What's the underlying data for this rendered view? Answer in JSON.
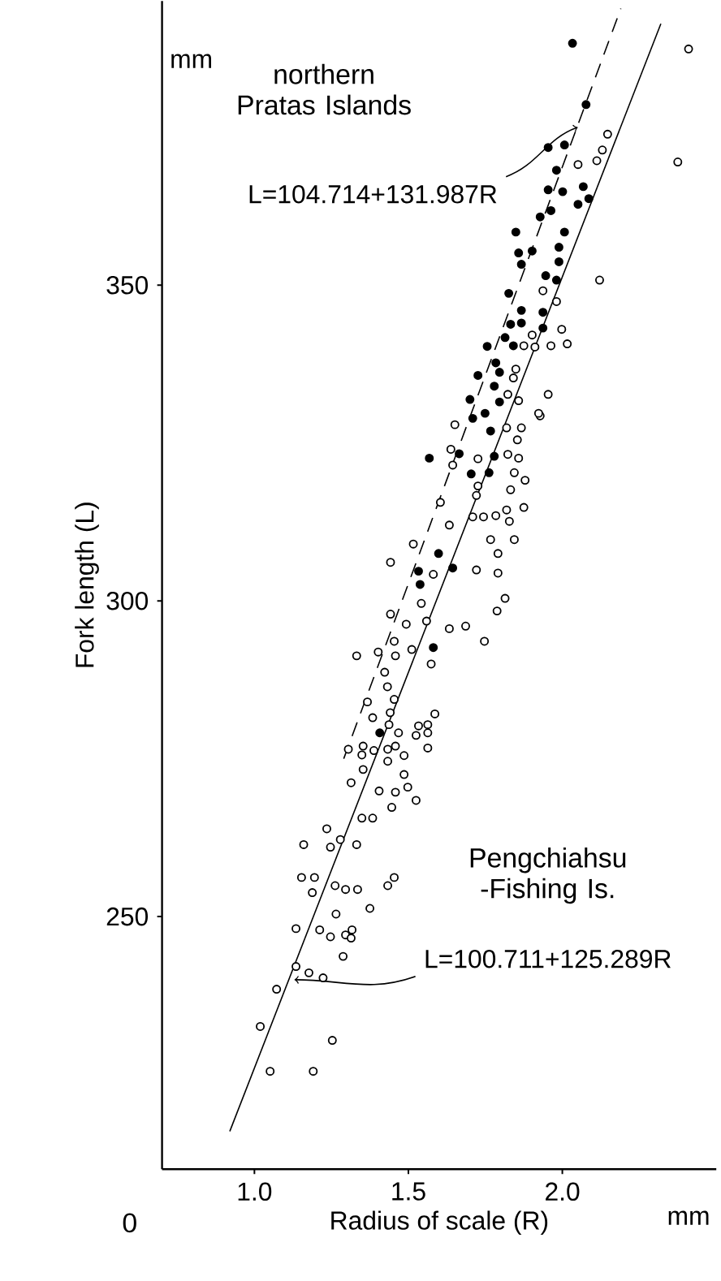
{
  "chart_data": {
    "type": "scatter",
    "xlabel": "Radius of scale (R)",
    "ylabel": "Fork length (L)",
    "marker": "circle",
    "xlim": [
      0.7,
      2.5
    ],
    "ylim": [
      210,
      395
    ],
    "xticks": [
      {
        "value": 1,
        "label": "1.0"
      },
      {
        "value": 1.5,
        "label": "1.5"
      },
      {
        "value": 2,
        "label": "2.0"
      }
    ],
    "yticks": [
      250,
      300,
      350
    ],
    "annotations": [
      "northern Pratas Islands",
      {
        "text": "L=104.714+131.987R",
        "x": 2.05,
        "y": 375
      },
      "Pengchiahsu -Fishing Is.",
      {
        "text": "L=100.711+125.289R",
        "x": 1.13,
        "y": 240
      },
      "mm",
      "mm",
      "0"
    ],
    "series": [
      {
        "color": "#000000",
        "x": [
          2.033,
          2.077,
          1.954,
          2.007,
          1.981,
          2.068,
          1.954,
          2.001,
          2.086,
          2.051,
          1.963,
          1.928,
          1.849,
          2.007,
          1.989,
          1.858,
          1.902,
          1.989,
          1.867,
          1.946,
          1.981,
          1.826,
          1.867,
          1.937,
          1.832,
          1.867,
          1.937,
          1.814,
          1.756,
          1.841,
          1.784,
          1.726,
          1.796,
          1.7,
          1.779,
          1.796,
          1.749,
          1.709,
          1.767,
          1.665,
          1.568,
          1.779,
          1.704,
          1.762,
          1.598,
          1.644,
          1.533,
          1.538,
          1.581,
          1.407
        ],
        "values": [
          388.3,
          378.6,
          371.8,
          372.2,
          368.2,
          365.6,
          365.1,
          364.8,
          363.7,
          362.8,
          361.8,
          360.8,
          358.4,
          358.4,
          356.0,
          355.1,
          355.4,
          353.7,
          353.3,
          351.5,
          350.8,
          348.7,
          346.0,
          345.7,
          343.8,
          344.0,
          343.2,
          341.7,
          340.3,
          340.4,
          337.7,
          335.7,
          336.2,
          331.9,
          334.0,
          331.5,
          329.7,
          328.9,
          326.9,
          323.3,
          322.6,
          322.9,
          320.1,
          320.3,
          307.5,
          305.2,
          304.7,
          302.6,
          292.6,
          279.1
        ]
      },
      {
        "color": "#000000",
        "x": [
          2.41,
          2.147,
          2.13,
          2.112,
          2.051,
          2.375,
          2.121,
          1.937,
          1.981,
          1.998,
          1.902,
          1.875,
          1.911,
          1.963,
          2.016,
          1.849,
          1.841,
          1.823,
          1.858,
          1.954,
          1.928,
          1.651,
          1.819,
          1.867,
          1.854,
          1.638,
          1.644,
          1.726,
          1.823,
          1.858,
          1.923,
          1.844,
          1.879,
          1.726,
          1.721,
          1.832,
          1.604,
          1.875,
          1.709,
          1.744,
          1.784,
          1.819,
          1.828,
          1.633,
          1.767,
          1.844,
          1.791,
          1.516,
          1.442,
          1.581,
          1.721,
          1.791,
          1.814,
          1.788,
          1.542,
          1.442,
          1.493,
          1.559,
          1.633,
          1.686,
          1.747,
          1.454,
          1.332,
          1.402,
          1.458,
          1.511,
          1.574,
          1.423,
          1.432,
          1.454,
          1.367,
          1.384,
          1.441,
          1.533,
          1.586,
          1.563,
          1.437,
          1.468,
          1.525,
          1.563,
          1.305,
          1.353,
          1.388,
          1.433,
          1.458,
          1.486,
          1.349,
          1.433,
          1.563,
          1.353,
          1.314,
          1.486,
          1.405,
          1.458,
          1.498,
          1.446,
          1.525,
          1.349,
          1.384,
          1.235,
          1.16,
          1.247,
          1.279,
          1.332,
          1.153,
          1.195,
          1.188,
          1.262,
          1.296,
          1.335,
          1.433,
          1.454,
          1.375,
          1.265,
          1.135,
          1.212,
          1.247,
          1.296,
          1.317,
          1.314,
          1.288,
          1.135,
          1.177,
          1.223,
          1.072,
          1.019,
          1.253,
          1.051,
          1.191
        ],
        "values": [
          387.4,
          373.9,
          371.4,
          369.7,
          369.1,
          369.5,
          350.8,
          349.1,
          347.4,
          343.0,
          342.1,
          340.4,
          340.2,
          340.4,
          340.7,
          336.7,
          335.3,
          332.7,
          331.7,
          332.7,
          329.3,
          327.9,
          327.4,
          327.4,
          325.5,
          324.0,
          321.5,
          322.5,
          323.2,
          322.6,
          329.7,
          320.3,
          319.1,
          318.2,
          316.7,
          317.6,
          315.6,
          314.8,
          313.3,
          313.3,
          313.5,
          314.4,
          312.6,
          312.0,
          309.7,
          309.7,
          307.5,
          309.0,
          306.1,
          304.2,
          304.9,
          304.4,
          300.4,
          298.4,
          299.6,
          297.9,
          296.3,
          296.8,
          295.6,
          296.0,
          293.6,
          293.6,
          291.3,
          291.9,
          291.3,
          292.3,
          290.0,
          288.7,
          286.4,
          284.4,
          284.0,
          281.5,
          282.3,
          280.2,
          282.1,
          280.4,
          280.4,
          279.1,
          278.7,
          279.1,
          276.5,
          277.0,
          276.3,
          276.5,
          277.0,
          275.5,
          275.6,
          274.6,
          276.7,
          273.3,
          271.2,
          272.5,
          269.9,
          269.7,
          270.5,
          267.3,
          268.4,
          265.6,
          265.6,
          263.9,
          261.4,
          261.0,
          262.2,
          261.4,
          256.2,
          256.2,
          253.8,
          254.9,
          254.3,
          254.3,
          254.9,
          256.2,
          251.3,
          250.4,
          248.1,
          247.9,
          246.8,
          247.1,
          247.9,
          246.6,
          243.7,
          242.1,
          241.1,
          240.3,
          238.5,
          232.6,
          230.4,
          225.5,
          225.5
        ]
      },
      {
        "type": "line",
        "color": "#000000",
        "line_style": "dashed",
        "marker": "none",
        "x": [
          1.29,
          2.19
        ],
        "values": [
          275.0,
          393.8
        ]
      },
      {
        "type": "line",
        "color": "#000000",
        "line_style": "solid",
        "marker": "none",
        "x": [
          0.92,
          2.32
        ],
        "values": [
          216.0,
          391.4
        ]
      }
    ]
  }
}
